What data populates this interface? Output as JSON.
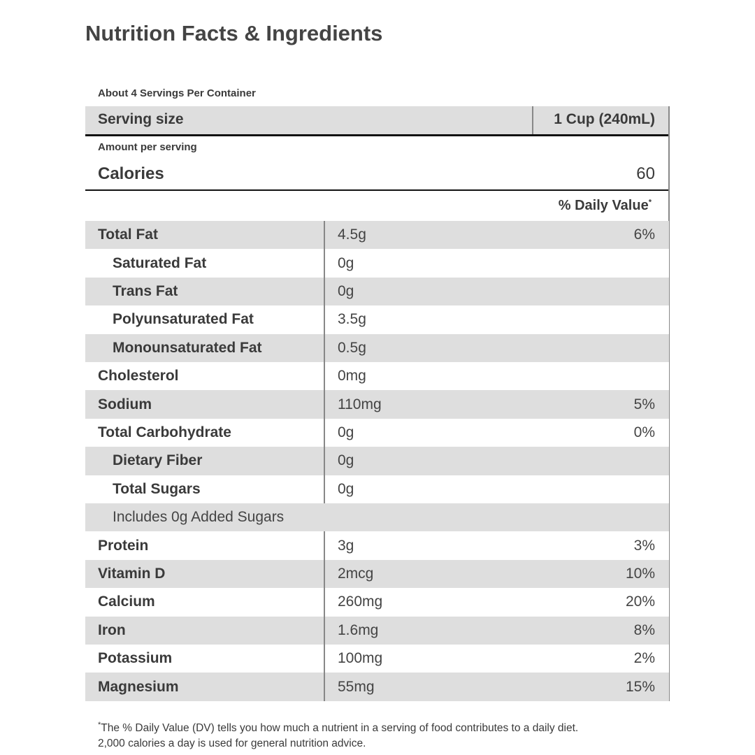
{
  "header": {
    "title": "Nutrition Facts & Ingredients"
  },
  "label": {
    "servings": "About 4 Servings Per Container",
    "serving_size": {
      "label": "Serving size",
      "value": "1 Cup (240mL)"
    },
    "amount_per_serving": "Amount per serving",
    "calories": {
      "label": "Calories",
      "value": "60"
    },
    "daily_value_heading": {
      "text": "% Daily Value",
      "marker": "*"
    },
    "rows": [
      {
        "name": "Total Fat",
        "amount": "4.5g",
        "dv": "6%",
        "sub": [
          {
            "name": "Saturated Fat",
            "amount": "0g"
          },
          {
            "name": "Trans Fat",
            "amount": "0g"
          },
          {
            "name": "Polyunsaturated Fat",
            "amount": "3.5g"
          },
          {
            "name": "Monounsaturated Fat",
            "amount": "0.5g"
          }
        ]
      },
      {
        "name": "Cholesterol",
        "amount": "0mg"
      },
      {
        "name": "Sodium",
        "amount": "110mg",
        "dv": "5%"
      },
      {
        "name": "Total Carbohydrate",
        "amount": "0g",
        "dv": "0%",
        "sub": [
          {
            "name": "Dietary Fiber",
            "amount": "0g"
          },
          {
            "name": "Total Sugars",
            "amount": "0g"
          },
          {
            "text": "Includes 0g Added Sugars"
          }
        ]
      },
      {
        "name": "Protein",
        "amount": "3g",
        "dv": "3%"
      },
      {
        "name": "Vitamin D",
        "amount": "2mcg",
        "dv": "10%"
      },
      {
        "name": "Calcium",
        "amount": "260mg",
        "dv": "20%"
      },
      {
        "name": "Iron",
        "amount": "1.6mg",
        "dv": "8%"
      },
      {
        "name": "Potassium",
        "amount": "100mg",
        "dv": "2%"
      },
      {
        "name": "Magnesium",
        "amount": "55mg",
        "dv": "15%"
      }
    ],
    "footnote": {
      "marker": "*",
      "lines": [
        "The % Daily Value (DV) tells you how much a nutrient in a serving of food contributes to a daily diet.",
        "2,000 calories a day is used for general nutrition advice."
      ]
    }
  }
}
